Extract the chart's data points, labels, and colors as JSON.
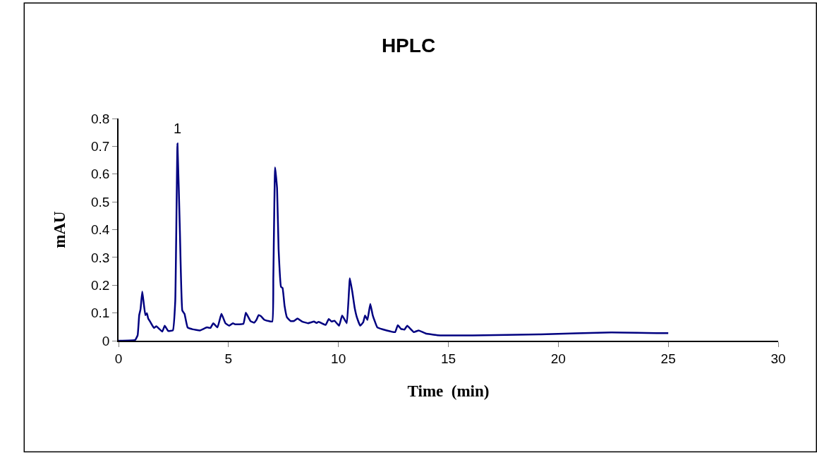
{
  "chart_data": {
    "type": "line",
    "title": "HPLC",
    "xlabel": "Time  (min)",
    "ylabel": "mAU",
    "xlim": [
      0,
      30
    ],
    "xticks": [
      0,
      5,
      10,
      15,
      20,
      25,
      30
    ],
    "ylim": [
      0,
      0.8
    ],
    "yticks": [
      0,
      0.1,
      0.2,
      0.3,
      0.4,
      0.5,
      0.6,
      0.7,
      0.8
    ],
    "marker": "none",
    "line_style": "solid",
    "annotations": [
      {
        "text": "1",
        "x": 2.68,
        "y": 0.71
      }
    ],
    "series": [
      {
        "color": "#000080",
        "x": [
          0,
          0.76,
          0.87,
          0.94,
          1.0,
          1.08,
          1.22,
          1.29,
          1.35,
          1.45,
          1.61,
          1.72,
          1.99,
          2.1,
          2.26,
          2.47,
          2.58,
          2.68,
          2.79,
          2.9,
          3.0,
          3.14,
          3.38,
          3.7,
          4.02,
          4.18,
          4.31,
          4.5,
          4.68,
          4.86,
          5.04,
          5.2,
          5.31,
          5.68,
          5.79,
          6.0,
          6.16,
          6.27,
          6.37,
          6.48,
          6.64,
          6.99,
          7.04,
          7.12,
          7.21,
          7.28,
          7.39,
          7.46,
          7.55,
          7.66,
          7.82,
          7.98,
          8.14,
          8.35,
          8.62,
          8.89,
          9.0,
          9.1,
          9.42,
          9.56,
          9.69,
          9.82,
          10.03,
          10.17,
          10.38,
          10.52,
          10.63,
          10.74,
          10.84,
          10.99,
          11.13,
          11.21,
          11.32,
          11.45,
          11.56,
          11.77,
          12.2,
          12.58,
          12.7,
          12.84,
          13.0,
          13.13,
          13.43,
          13.65,
          13.97,
          14.5,
          16.1,
          19.2,
          22.4,
          25.0
        ],
        "values": [
          0,
          0.003,
          0.02,
          0.092,
          0.113,
          0.177,
          0.092,
          0.099,
          0.08,
          0.067,
          0.046,
          0.052,
          0.033,
          0.054,
          0.035,
          0.037,
          0.143,
          0.71,
          0.397,
          0.109,
          0.097,
          0.048,
          0.041,
          0.037,
          0.048,
          0.046,
          0.063,
          0.048,
          0.097,
          0.063,
          0.054,
          0.063,
          0.059,
          0.061,
          0.101,
          0.071,
          0.065,
          0.075,
          0.092,
          0.088,
          0.075,
          0.069,
          0.228,
          0.624,
          0.549,
          0.329,
          0.194,
          0.19,
          0.126,
          0.084,
          0.071,
          0.071,
          0.08,
          0.069,
          0.063,
          0.069,
          0.064,
          0.068,
          0.057,
          0.078,
          0.069,
          0.072,
          0.054,
          0.091,
          0.063,
          0.225,
          0.177,
          0.118,
          0.084,
          0.054,
          0.067,
          0.091,
          0.075,
          0.133,
          0.092,
          0.048,
          0.037,
          0.031,
          0.056,
          0.043,
          0.04,
          0.054,
          0.031,
          0.037,
          0.026,
          0.02,
          0.019,
          0.023,
          0.03,
          0.027
        ]
      }
    ]
  }
}
